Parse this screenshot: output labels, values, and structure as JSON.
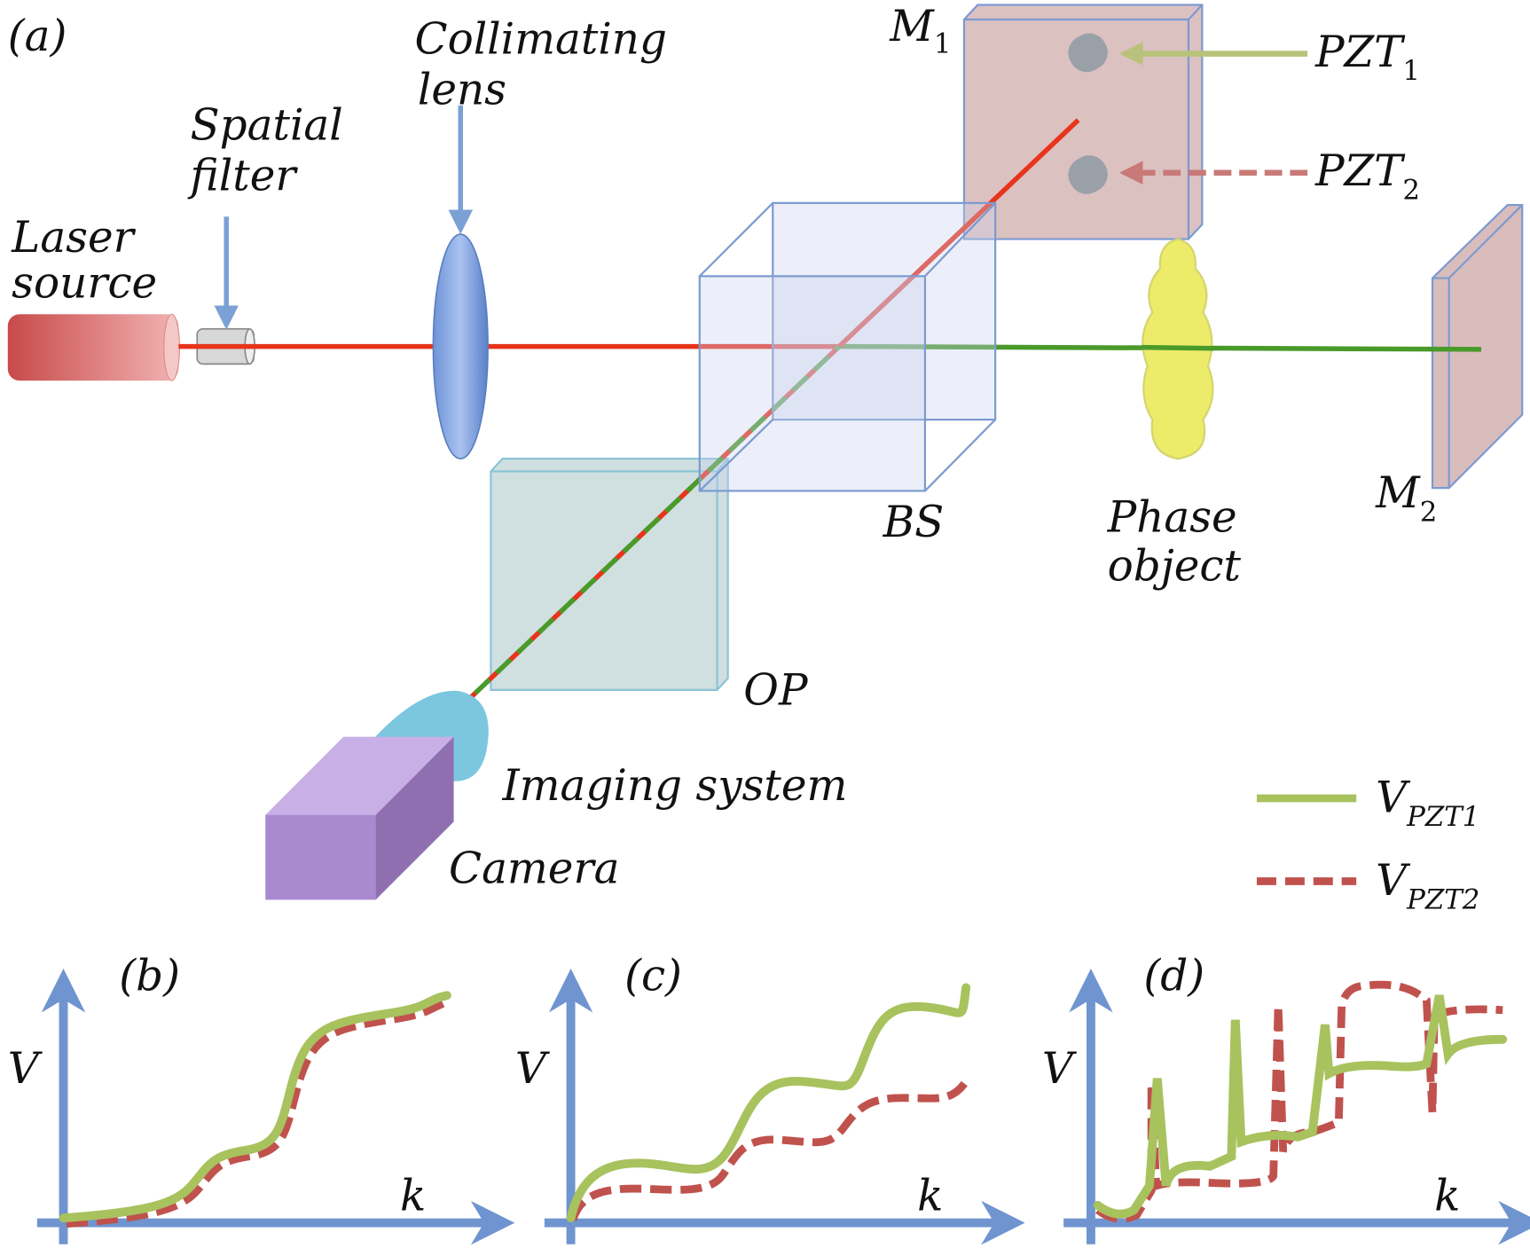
{
  "panel_a": {
    "label": "(a)",
    "laser_source": [
      "Laser",
      "source"
    ],
    "spatial_filter": [
      "Spatial",
      "filter"
    ],
    "collimating_lens": [
      "Collimating",
      "lens"
    ],
    "m1": {
      "main": "M",
      "sub": "1"
    },
    "m2": {
      "main": "M",
      "sub": "2"
    },
    "pzt1": {
      "main": "PZT",
      "sub": "1"
    },
    "pzt2": {
      "main": "PZT",
      "sub": "2"
    },
    "bs": "BS",
    "phase_object": [
      "Phase",
      "object"
    ],
    "op": "OP",
    "imaging_system": "Imaging system",
    "camera": "Camera",
    "legend": [
      {
        "main": "V",
        "sub": "PZT1",
        "style": "solid",
        "color": "#a8c25e"
      },
      {
        "main": "V",
        "sub": "PZT2",
        "style": "dashed",
        "color": "#c0524d"
      }
    ]
  },
  "panels": [
    {
      "label": "(b)",
      "y_axis": "V",
      "x_axis": "k"
    },
    {
      "label": "(c)",
      "y_axis": "V",
      "x_axis": "k"
    },
    {
      "label": "(d)",
      "y_axis": "V",
      "x_axis": "k"
    }
  ],
  "colors": {
    "laser_beam": "#e8341c",
    "object_beam": "#4a9a2a",
    "axis": "#6f94cf"
  }
}
